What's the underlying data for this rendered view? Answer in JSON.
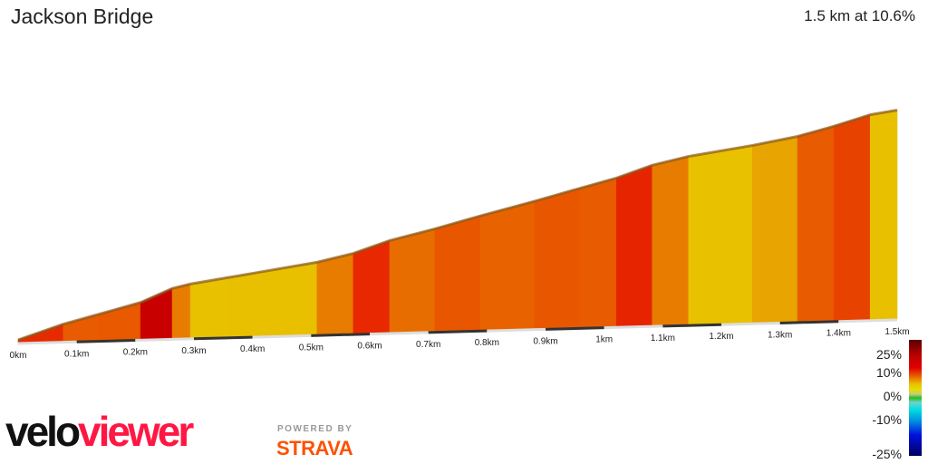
{
  "header": {
    "title": "Jackson Bridge",
    "summary": "1.5 km at 10.6%"
  },
  "chart_data": {
    "type": "area",
    "xlabel": "",
    "ylabel": "",
    "xlim": [
      0,
      1.5
    ],
    "x_tick_labels": [
      "0km",
      "0.1km",
      "0.2km",
      "0.3km",
      "0.4km",
      "0.5km",
      "0.6km",
      "0.7km",
      "0.8km",
      "0.9km",
      "1km",
      "1.1km",
      "1.2km",
      "1.3km",
      "1.4km",
      "1.5km"
    ],
    "distance_km": [
      0,
      0.077,
      0.139,
      0.209,
      0.263,
      0.294,
      0.356,
      0.433,
      0.51,
      0.572,
      0.634,
      0.711,
      0.789,
      0.881,
      0.959,
      1.021,
      1.082,
      1.144,
      1.206,
      1.253,
      1.33,
      1.392,
      1.454,
      1.5
    ],
    "elevation_gain_m": [
      0,
      11,
      18,
      26,
      36,
      39,
      43,
      48,
      53,
      59,
      68,
      76,
      85,
      95,
      104,
      111,
      120,
      126,
      130,
      133,
      139,
      146,
      154,
      157
    ],
    "color_by": "gradient",
    "legend": {
      "labels": [
        "25%",
        "10%",
        "0%",
        "-10%",
        "-25%"
      ],
      "placement": "right"
    },
    "colors": {
      "grade_0": "#20c020",
      "grade_5": "#e8e000",
      "grade_8": "#e8a000",
      "grade_11": "#e86000",
      "grade_14": "#e83000",
      "grade_17": "#e00000",
      "grade_25": "#600000",
      "edge": "#8a5a1a"
    }
  },
  "branding": {
    "logo_left": "velo",
    "logo_right": "viewer",
    "powered_by": "POWERED BY",
    "strava": "STRAVA"
  }
}
